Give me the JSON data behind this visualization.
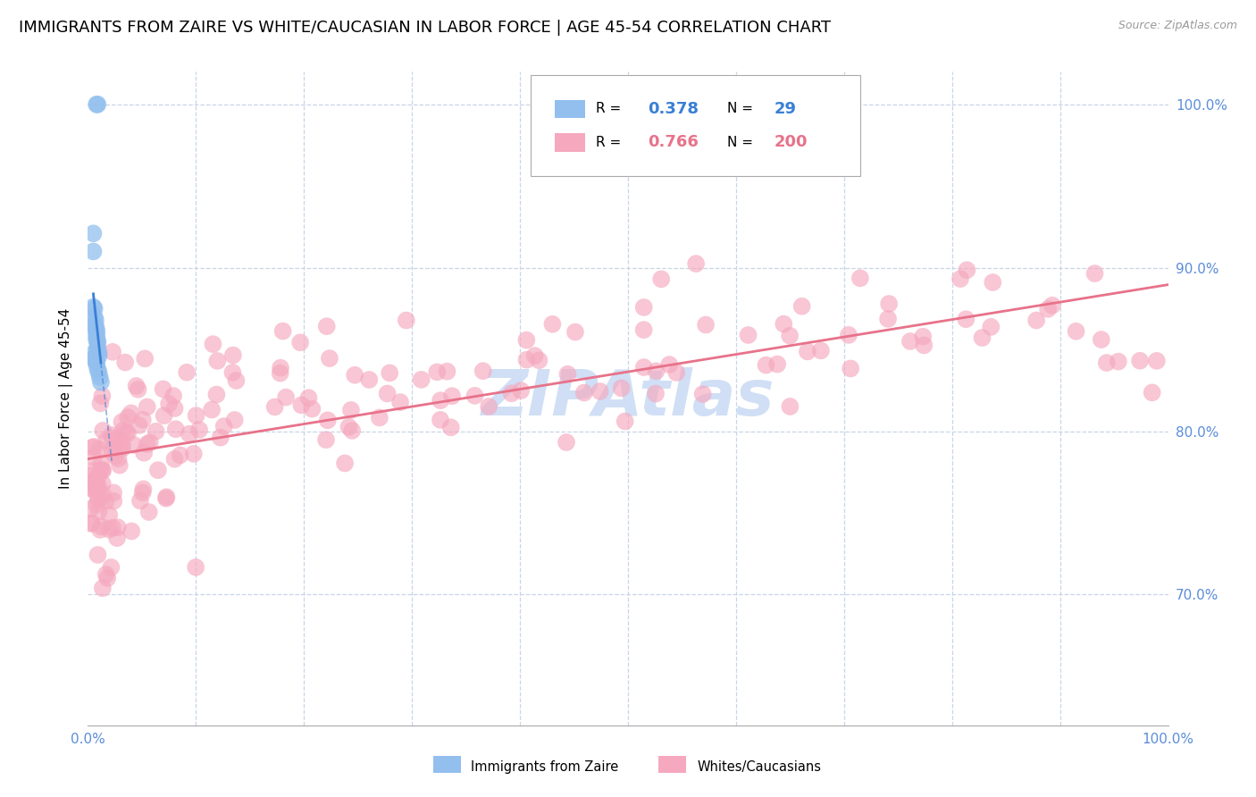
{
  "title": "IMMIGRANTS FROM ZAIRE VS WHITE/CAUCASIAN IN LABOR FORCE | AGE 45-54 CORRELATION CHART",
  "source": "Source: ZipAtlas.com",
  "ylabel": "In Labor Force | Age 45-54",
  "xlim": [
    0.0,
    1.0
  ],
  "ylim": [
    0.62,
    1.02
  ],
  "legend_r_blue": "0.378",
  "legend_n_blue": "29",
  "legend_r_pink": "0.766",
  "legend_n_pink": "200",
  "blue_color": "#92bfee",
  "pink_color": "#f5a8be",
  "blue_line_color": "#3a7fd5",
  "pink_line_color": "#e8728a",
  "watermark_color": "#d0dff5",
  "background_color": "#ffffff",
  "tick_label_color": "#5b8dd9",
  "title_fontsize": 13,
  "axis_label_fontsize": 11,
  "source_fontsize": 9
}
